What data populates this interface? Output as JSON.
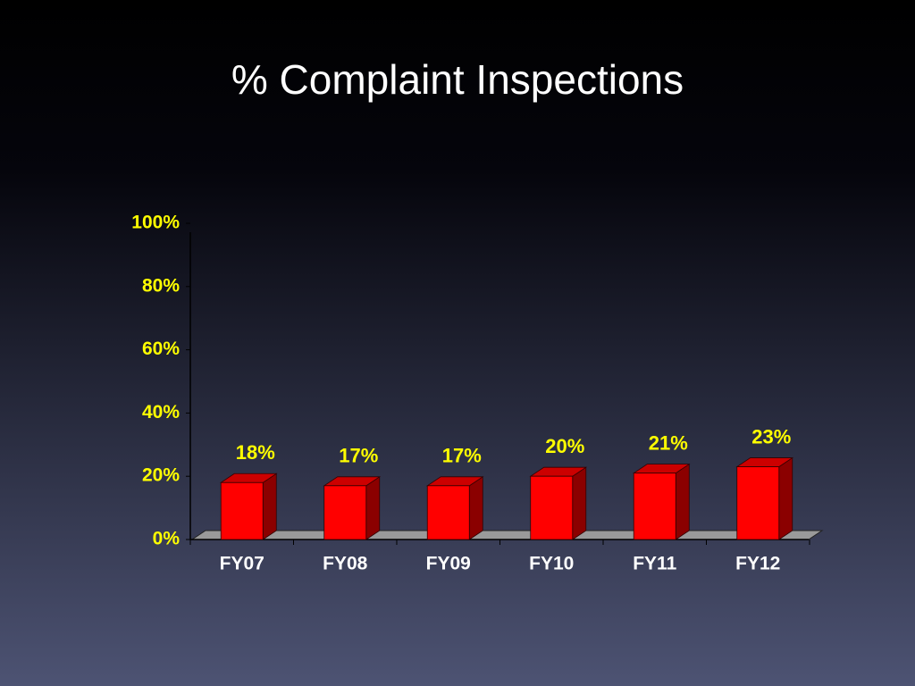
{
  "chart_data": {
    "type": "bar3d",
    "title": "% Complaint Inspections",
    "categories": [
      "FY07",
      "FY08",
      "FY09",
      "FY10",
      "FY11",
      "FY12"
    ],
    "values": [
      18,
      17,
      17,
      20,
      21,
      23
    ],
    "value_labels": [
      "18%",
      "17%",
      "17%",
      "20%",
      "21%",
      "23%"
    ],
    "color": "#ff0000",
    "ylim": [
      0,
      100
    ],
    "yticks": [
      {
        "value": 0,
        "label": "0%"
      },
      {
        "value": 20,
        "label": "20%"
      },
      {
        "value": 40,
        "label": "40%"
      },
      {
        "value": 60,
        "label": "60%"
      },
      {
        "value": 80,
        "label": "80%"
      },
      {
        "value": 100,
        "label": "100%"
      }
    ],
    "grid": false
  }
}
